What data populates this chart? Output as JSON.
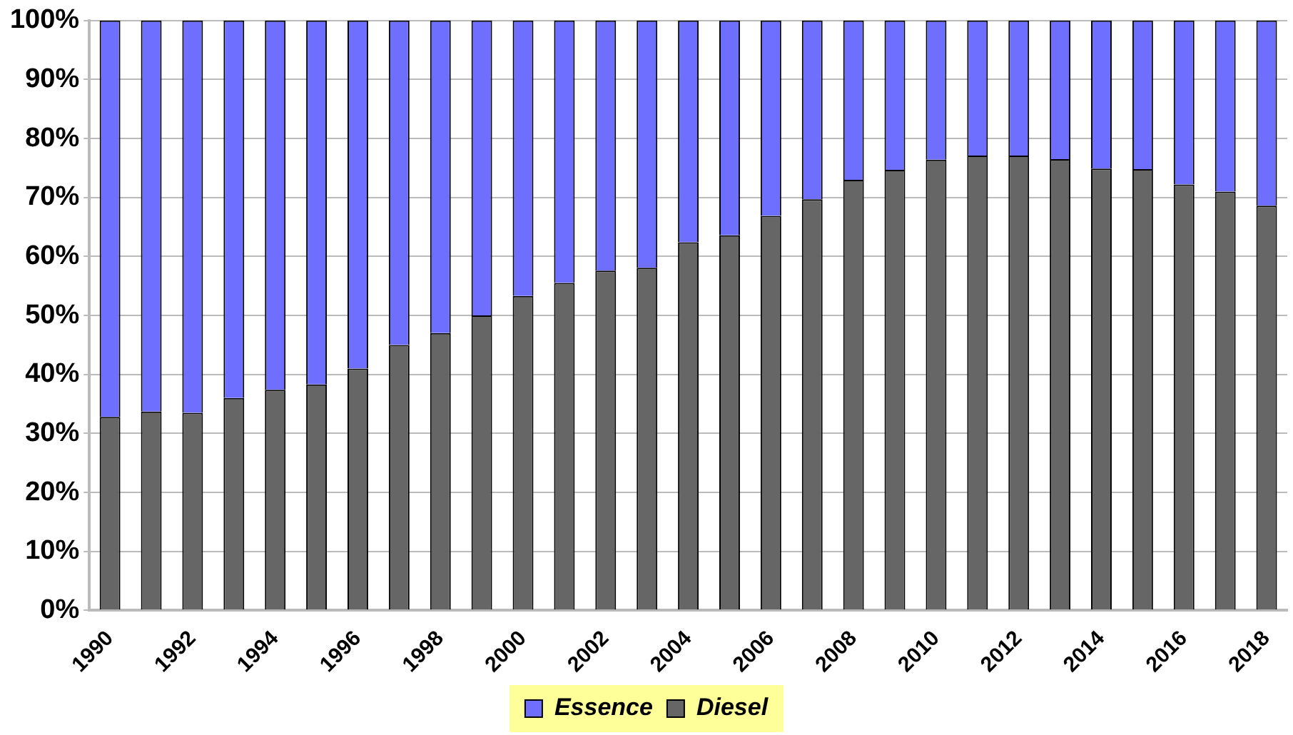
{
  "chart_data": {
    "type": "bar",
    "stacked": true,
    "categories": [
      "1990",
      null,
      "1992",
      null,
      "1994",
      null,
      "1996",
      null,
      "1998",
      null,
      "2000",
      null,
      "2002",
      null,
      "2004",
      null,
      "2006",
      null,
      "2008",
      null,
      "2010",
      null,
      "2012",
      null,
      "2014",
      null,
      "2016",
      null,
      "2018"
    ],
    "series": [
      {
        "name": "Diesel",
        "color": "#666666",
        "values": [
          32.8,
          33.7,
          33.5,
          36,
          37.4,
          38.3,
          41,
          45,
          47,
          50,
          53.3,
          55.5,
          57.6,
          58.1,
          62.4,
          63.6,
          66.9,
          69.7,
          73,
          74.7,
          76.4,
          77.1,
          77.1,
          76.5,
          74.9,
          74.8,
          72.2,
          71,
          68.6
        ]
      },
      {
        "name": "Essence",
        "color": "#6f6fff",
        "values": [
          67.2,
          66.3,
          66.5,
          64,
          62.6,
          61.7,
          59,
          55,
          53,
          50,
          46.7,
          44.5,
          42.4,
          41.9,
          37.6,
          36.4,
          33.1,
          30.3,
          27,
          25.3,
          23.6,
          22.9,
          22.9,
          23.5,
          25.1,
          25.2,
          27.8,
          29,
          31.4
        ]
      }
    ],
    "ylim": [
      0,
      100
    ],
    "yticks": [
      {
        "value": 0,
        "label": "0%"
      },
      {
        "value": 10,
        "label": "10%"
      },
      {
        "value": 20,
        "label": "20%"
      },
      {
        "value": 30,
        "label": "30%"
      },
      {
        "value": 40,
        "label": "40%"
      },
      {
        "value": 50,
        "label": "50%"
      },
      {
        "value": 60,
        "label": "60%"
      },
      {
        "value": 70,
        "label": "70%"
      },
      {
        "value": 80,
        "label": "80%"
      },
      {
        "value": 90,
        "label": "90%"
      },
      {
        "value": 100,
        "label": "100%"
      }
    ],
    "grid": "y",
    "legend": "bottom"
  }
}
